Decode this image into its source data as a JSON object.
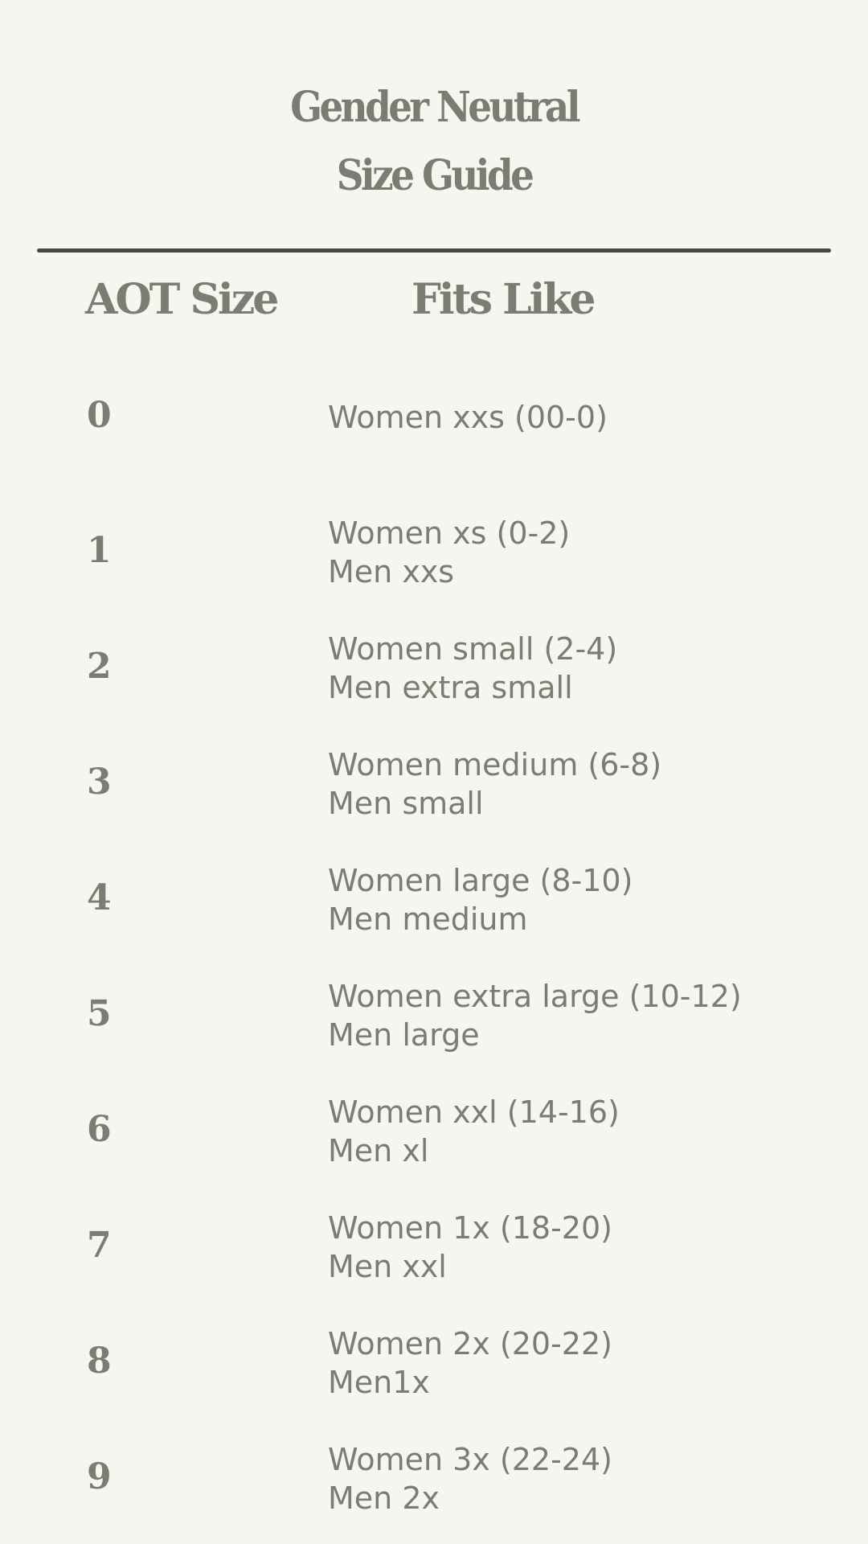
{
  "title": {
    "line1": "Gender Neutral",
    "line2": "Size Guide"
  },
  "headers": {
    "size": "AOT Size",
    "fits": "Fits Like"
  },
  "rows": [
    {
      "size": "0",
      "fits": [
        "Women xxs (00-0)"
      ]
    },
    {
      "size": "1",
      "fits": [
        "Women xs (0-2)",
        "Men xxs"
      ]
    },
    {
      "size": "2",
      "fits": [
        "Women small (2-4)",
        "Men extra small"
      ]
    },
    {
      "size": "3",
      "fits": [
        "Women medium (6-8)",
        "Men small"
      ]
    },
    {
      "size": "4",
      "fits": [
        "Women large (8-10)",
        "Men medium"
      ]
    },
    {
      "size": "5",
      "fits": [
        "Women extra large (10-12)",
        "Men large"
      ]
    },
    {
      "size": "6",
      "fits": [
        "Women xxl (14-16)",
        "Men xl"
      ]
    },
    {
      "size": "7",
      "fits": [
        "Women 1x (18-20)",
        "Men xxl"
      ]
    },
    {
      "size": "8",
      "fits": [
        "Women 2x (20-22)",
        "Men1x"
      ]
    },
    {
      "size": "9",
      "fits": [
        "Women 3x (22-24)",
        "Men 2x"
      ]
    }
  ],
  "colors": {
    "background": "#f7f5ef",
    "text": "#7a7d72",
    "rule": "#3f4a3c"
  }
}
